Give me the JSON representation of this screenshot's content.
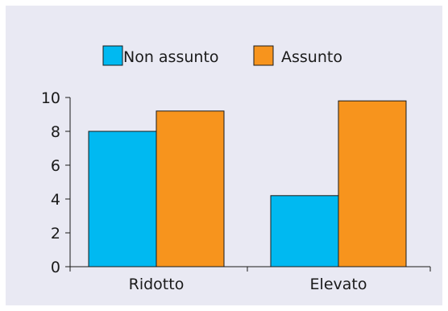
{
  "chart_data": {
    "type": "bar",
    "title": "",
    "xlabel": "",
    "ylabel": "",
    "categories": [
      "Ridotto",
      "Elevato"
    ],
    "series": [
      {
        "name": "Non assunto",
        "color": "#00b9f1",
        "values": [
          8.0,
          4.2
        ]
      },
      {
        "name": "Assunto",
        "color": "#f7941d",
        "values": [
          9.2,
          9.8
        ]
      }
    ],
    "ylim": [
      0,
      10
    ],
    "yticks": [
      "0",
      "2",
      "4",
      "6",
      "8",
      "10"
    ],
    "grid": false,
    "legend": "top-center"
  }
}
